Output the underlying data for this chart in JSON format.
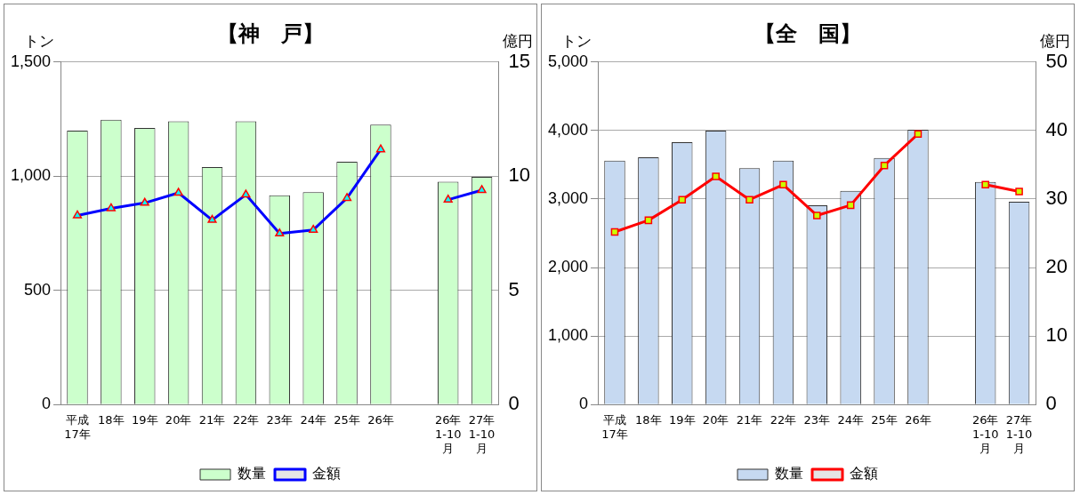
{
  "chart_data": [
    {
      "type": "bar",
      "title": "【神　戸】",
      "ylabel": "トン",
      "y2label": "億円",
      "categories": [
        "平成\n17年",
        "18年",
        "19年",
        "20年",
        "21年",
        "22年",
        "23年",
        "24年",
        "25年",
        "26年",
        null,
        "26年\n1-10\n月",
        "27年\n1-10\n月"
      ],
      "series": [
        {
          "name": "数量",
          "color": "#ccffcc",
          "values": [
            1200,
            1247,
            1211,
            1240,
            1040,
            1240,
            916,
            930,
            1063,
            1226,
            null,
            976,
            997
          ]
        },
        {
          "name": "金額",
          "type": "line",
          "axis": "y2",
          "color": "#0000ff",
          "marker": "triangle",
          "values": [
            8.28,
            8.59,
            8.83,
            9.27,
            8.08,
            9.19,
            7.49,
            7.65,
            9.04,
            11.17,
            null,
            8.97,
            9.39
          ]
        }
      ],
      "ylim": [
        0,
        1500
      ],
      "yticks": [
        0,
        {
          "value": 500,
          "label": "500"
        },
        {
          "value": 1000,
          "label": "1,000"
        },
        {
          "value": 1500,
          "label": "1,500"
        }
      ],
      "y2lim": [
        0,
        15
      ],
      "y2ticks": [
        0,
        5,
        10,
        15
      ],
      "grid": "y",
      "legend": "bottom"
    },
    {
      "type": "bar",
      "title": "【全　国】",
      "ylabel": "トン",
      "y2label": "億円",
      "categories": [
        "平成\n17年",
        "18年",
        "19年",
        "20年",
        "21年",
        "22年",
        "23年",
        "24年",
        "25年",
        "26年",
        null,
        "26年\n1-10\n月",
        "27年\n1-10\n月"
      ],
      "series": [
        {
          "name": "数量",
          "color": "#c6d9f1",
          "values": [
            3560,
            3610,
            3830,
            4000,
            3450,
            3560,
            2910,
            3120,
            3600,
            4010,
            null,
            3250,
            2960
          ]
        },
        {
          "name": "金額",
          "type": "line",
          "axis": "y2",
          "color": "#ff0000",
          "marker": "square",
          "values": [
            25.2,
            26.9,
            29.9,
            33.3,
            29.9,
            32.1,
            27.6,
            29.1,
            34.9,
            39.5,
            null,
            32.1,
            31.1
          ]
        }
      ],
      "ylim": [
        0,
        5000
      ],
      "yticks": [
        0,
        {
          "value": 1000,
          "label": "1,000"
        },
        {
          "value": 2000,
          "label": "2,000"
        },
        {
          "value": 3000,
          "label": "3,000"
        },
        {
          "value": 4000,
          "label": "4,000"
        },
        {
          "value": 5000,
          "label": "5,000"
        }
      ],
      "y2lim": [
        0,
        50
      ],
      "y2ticks": [
        0,
        10,
        20,
        30,
        40,
        50
      ],
      "grid": "y",
      "legend": "bottom"
    }
  ]
}
